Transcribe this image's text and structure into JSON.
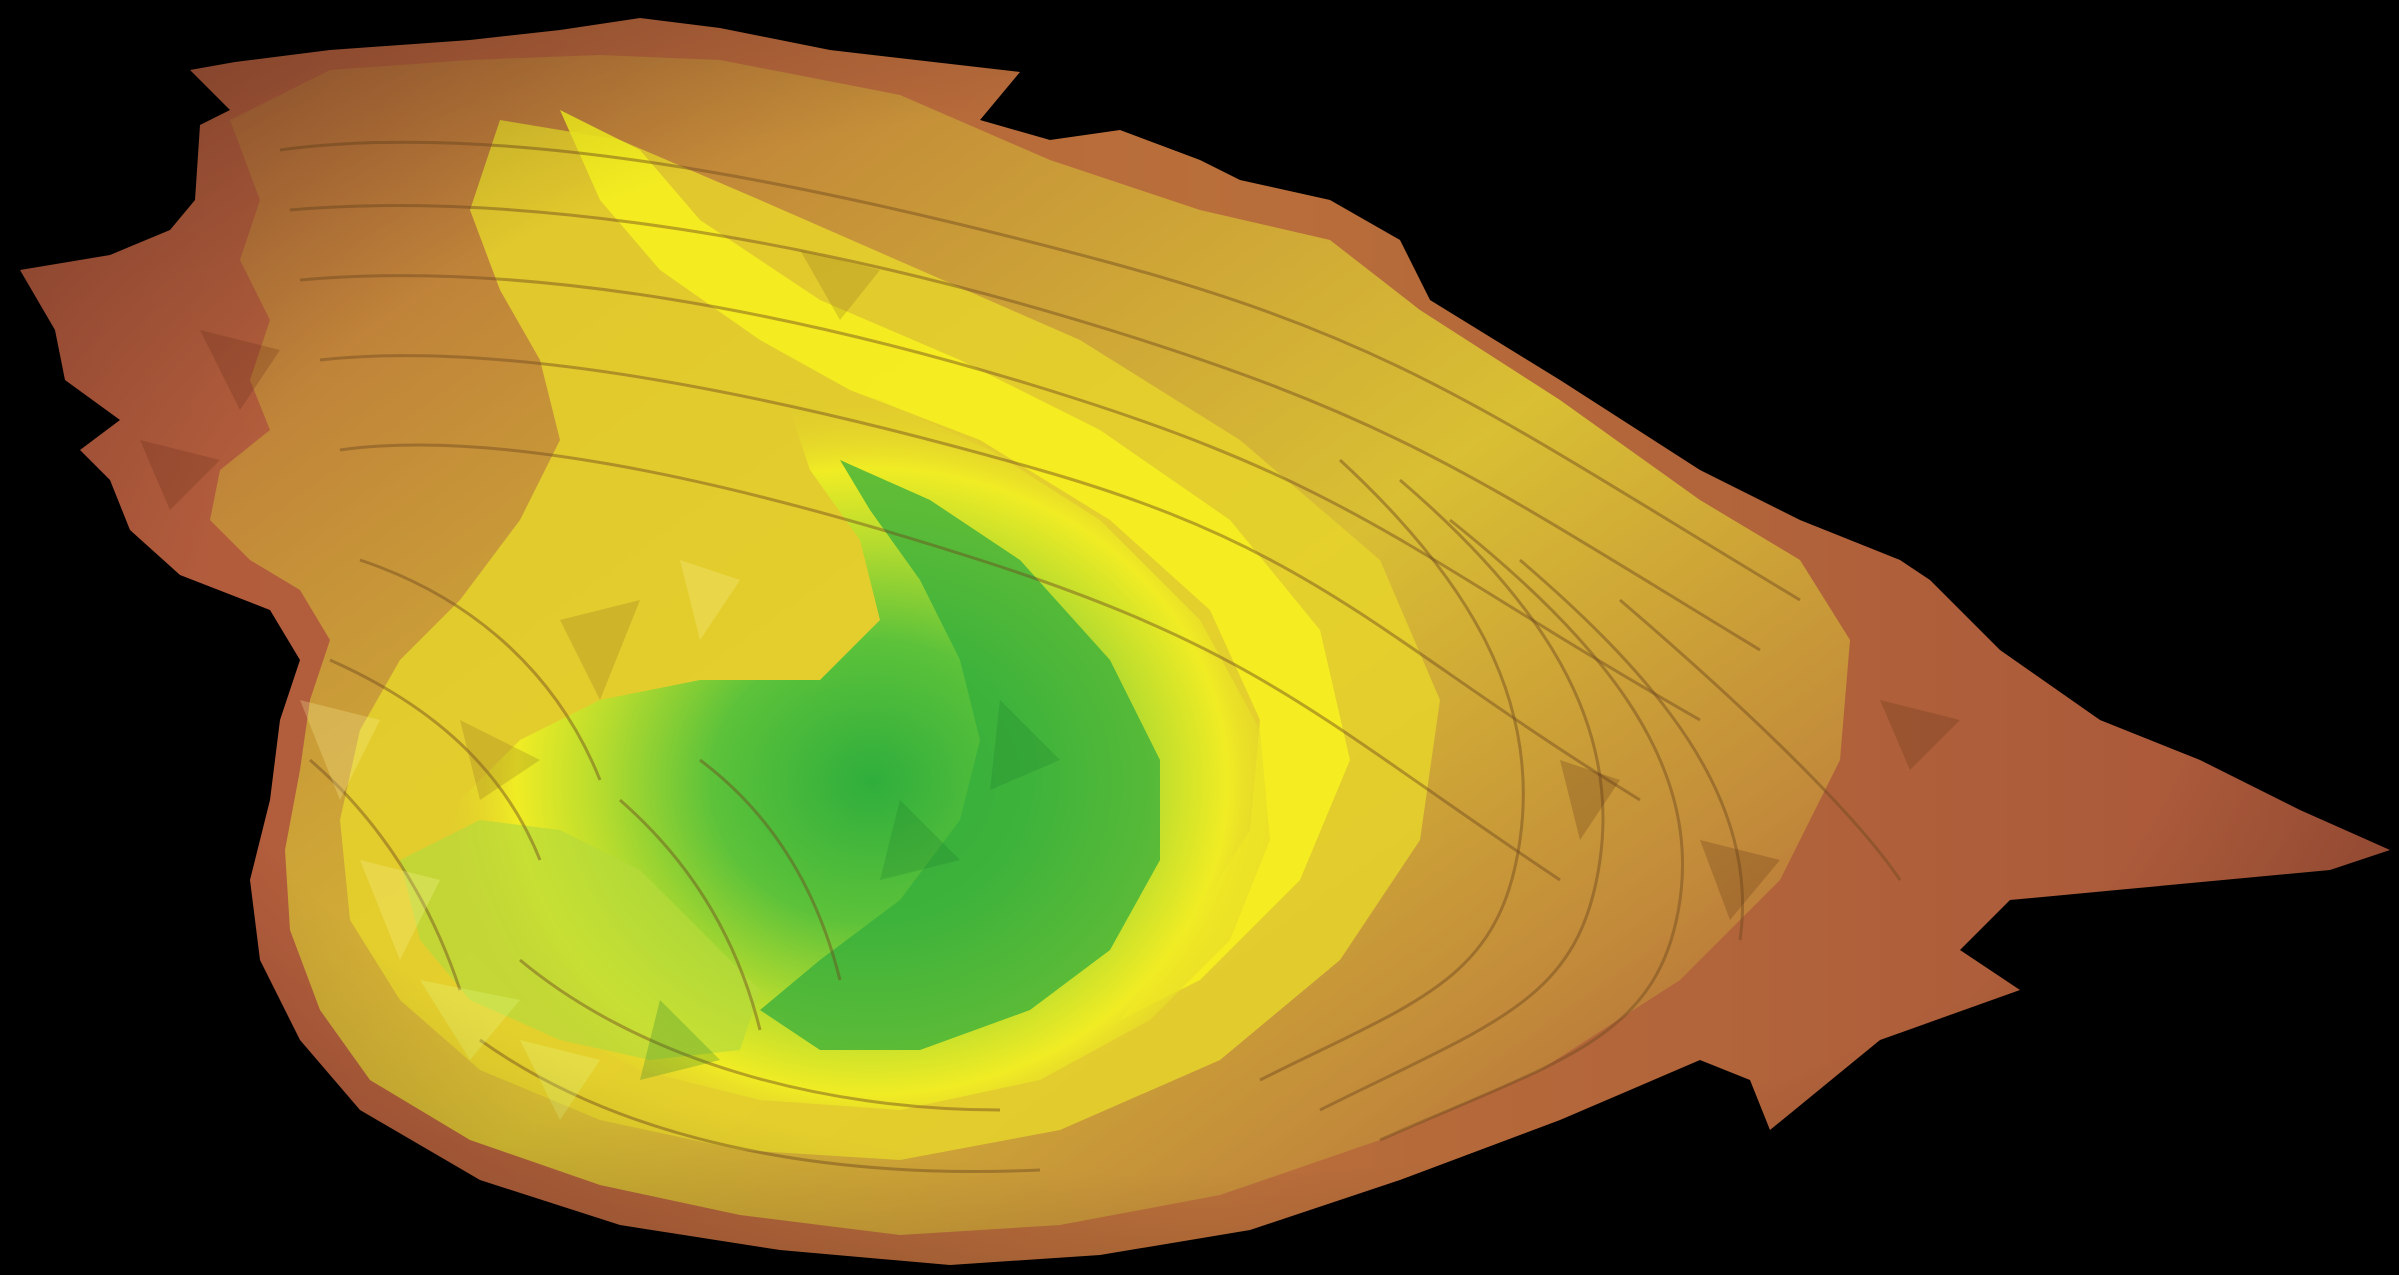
{
  "scene": {
    "subject": "3d-terrain-surface",
    "background_color": "#000000",
    "colors": {
      "rim": "#a8553a",
      "upper_slope": "#b98a3c",
      "mid_slope": "#d6c232",
      "bright_band": "#f2ee22",
      "pit_green": "#8fd53a",
      "pit_floor": "#2fae3c"
    }
  }
}
